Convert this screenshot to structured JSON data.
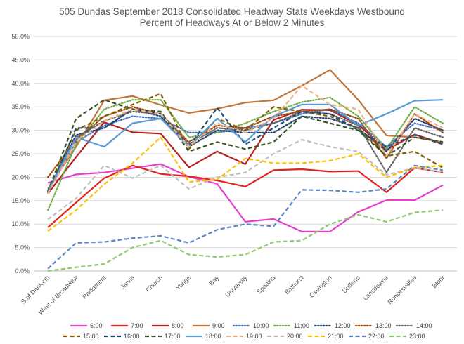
{
  "chart_data": {
    "type": "line",
    "title": "505 Dundas   September 2018  Consolidated Headway Stats Weekdays Westbound",
    "subtitle": "Percent of Headways At or Below 2 Minutes",
    "xlabel": "",
    "ylabel": "",
    "ylim": [
      0,
      50
    ],
    "yticks": [
      "0.0%",
      "5.0%",
      "10.0%",
      "15.0%",
      "20.0%",
      "25.0%",
      "30.0%",
      "35.0%",
      "40.0%",
      "45.0%",
      "50.0%"
    ],
    "grid": true,
    "legend_position": "bottom",
    "categories": [
      "S of Danforth",
      "West of Broadview",
      "Parliament",
      "Jarvis",
      "Church",
      "Yonge",
      "Bay",
      "University",
      "Spadina",
      "Bathurst",
      "Ossington",
      "Dufferin",
      "Lansdowne",
      "Roncesvalles",
      "Bloor"
    ],
    "series": [
      {
        "name": "6:00",
        "color": "#e83ed0",
        "dash": "solid",
        "width": 2.2,
        "values": [
          18.8,
          20.6,
          21.0,
          21.9,
          22.8,
          20.1,
          18.6,
          10.5,
          11.1,
          8.4,
          8.4,
          12.6,
          15.1,
          15.1,
          18.3
        ]
      },
      {
        "name": "7:00",
        "color": "#e3231e",
        "dash": "solid",
        "width": 2.2,
        "values": [
          9.3,
          14.6,
          19.8,
          22.5,
          20.7,
          20.2,
          19.3,
          18.0,
          21.5,
          21.7,
          21.2,
          21.3,
          16.8,
          22.0,
          21.0
        ]
      },
      {
        "name": "8:00",
        "color": "#b52020",
        "dash": "solid",
        "width": 2.2,
        "values": [
          16.5,
          24.3,
          31.7,
          29.6,
          29.3,
          22.1,
          25.5,
          22.8,
          32.2,
          34.4,
          34.3,
          31.2,
          25.8,
          29.1,
          27.2
        ]
      },
      {
        "name": "9:00",
        "color": "#c0753a",
        "dash": "solid",
        "width": 2.2,
        "values": [
          17.5,
          26.5,
          36.4,
          37.3,
          35.4,
          33.7,
          34.6,
          35.9,
          36.4,
          39.5,
          42.9,
          36.5,
          28.9,
          28.5,
          27.5
        ]
      },
      {
        "name": "10:00",
        "color": "#4472c4",
        "dash": "dot",
        "width": 2.2,
        "values": [
          17.0,
          27.5,
          31.0,
          33.0,
          32.5,
          29.5,
          29.5,
          30.5,
          31.5,
          33.5,
          34.5,
          31.5,
          26.5,
          31.5,
          30.0
        ]
      },
      {
        "name": "11:00",
        "color": "#70ad47",
        "dash": "dot",
        "width": 2.2,
        "values": [
          13.0,
          27.0,
          34.5,
          36.5,
          36.5,
          28.5,
          29.5,
          31.5,
          34.0,
          36.0,
          37.0,
          33.0,
          26.0,
          35.0,
          31.5
        ]
      },
      {
        "name": "12:00",
        "color": "#264478",
        "dash": "dot",
        "width": 2.2,
        "values": [
          16.8,
          29.0,
          30.5,
          34.5,
          33.0,
          26.5,
          30.0,
          29.5,
          29.5,
          33.0,
          32.5,
          30.5,
          25.5,
          32.5,
          30.0
        ]
      },
      {
        "name": "13:00",
        "color": "#9e480e",
        "dash": "dot",
        "width": 2.2,
        "values": [
          20.0,
          28.0,
          33.0,
          35.0,
          33.5,
          27.5,
          31.0,
          30.5,
          33.0,
          34.0,
          34.5,
          32.5,
          24.0,
          33.5,
          29.5
        ]
      },
      {
        "name": "14:00",
        "color": "#636363",
        "dash": "dot",
        "width": 2.2,
        "values": [
          17.0,
          28.5,
          32.0,
          34.0,
          33.5,
          27.0,
          30.5,
          30.0,
          31.5,
          34.0,
          33.5,
          31.0,
          21.0,
          30.5,
          28.5
        ]
      },
      {
        "name": "15:00",
        "color": "#806000",
        "dash": "dash",
        "width": 2.2,
        "values": [
          17.0,
          30.0,
          33.0,
          35.5,
          37.8,
          26.0,
          32.5,
          30.0,
          35.0,
          34.0,
          33.0,
          30.5,
          24.5,
          25.5,
          22.0
        ]
      },
      {
        "name": "16:00",
        "color": "#1f4e79",
        "dash": "dash",
        "width": 2.2,
        "values": [
          16.5,
          30.5,
          30.5,
          34.5,
          33.5,
          26.5,
          34.8,
          27.0,
          30.5,
          34.0,
          33.5,
          30.0,
          26.5,
          29.0,
          27.0
        ]
      },
      {
        "name": "17:00",
        "color": "#375623",
        "dash": "dash",
        "width": 2.2,
        "values": [
          17.0,
          32.5,
          36.5,
          34.5,
          34.0,
          25.5,
          27.5,
          26.0,
          27.5,
          33.0,
          31.5,
          30.0,
          24.5,
          28.5,
          27.5
        ]
      },
      {
        "name": "18:00",
        "color": "#5b9bd5",
        "dash": "solid",
        "width": 2.2,
        "values": [
          16.8,
          28.5,
          26.5,
          31.5,
          32.5,
          26.5,
          32.5,
          27.5,
          33.0,
          35.5,
          35.5,
          31.0,
          33.5,
          36.3,
          36.5
        ]
      },
      {
        "name": "19:00",
        "color": "#f4b183",
        "dash": "dash",
        "width": 2.2,
        "values": [
          16.5,
          27.5,
          32.0,
          34.5,
          33.5,
          26.5,
          31.5,
          29.5,
          32.5,
          39.5,
          35.5,
          34.5,
          24.5,
          33.5,
          30.5
        ]
      },
      {
        "name": "20:00",
        "color": "#bfbfbf",
        "dash": "dash",
        "width": 2.2,
        "values": [
          11.0,
          15.5,
          22.5,
          19.8,
          22.5,
          17.5,
          20.0,
          21.0,
          25.0,
          28.0,
          26.5,
          25.5,
          20.5,
          22.0,
          21.0
        ]
      },
      {
        "name": "21:00",
        "color": "#ffc000",
        "dash": "dash",
        "width": 2.2,
        "values": [
          8.5,
          13.0,
          18.5,
          23.0,
          28.5,
          19.0,
          19.5,
          24.0,
          23.0,
          23.0,
          23.5,
          25.0,
          20.0,
          22.0,
          22.5
        ]
      },
      {
        "name": "22:00",
        "color": "#5a86c5",
        "dash": "dash",
        "width": 2.2,
        "values": [
          0.5,
          6.0,
          6.2,
          7.0,
          7.5,
          6.0,
          8.8,
          10.0,
          9.5,
          17.3,
          17.2,
          16.8,
          17.5,
          22.5,
          21.5
        ]
      },
      {
        "name": "23:00",
        "color": "#8fca6e",
        "dash": "dash",
        "width": 2.2,
        "values": [
          0.0,
          0.8,
          1.5,
          5.0,
          6.5,
          3.5,
          3.0,
          3.5,
          6.2,
          6.5,
          10.0,
          12.0,
          10.5,
          12.5,
          13.0
        ]
      }
    ]
  }
}
